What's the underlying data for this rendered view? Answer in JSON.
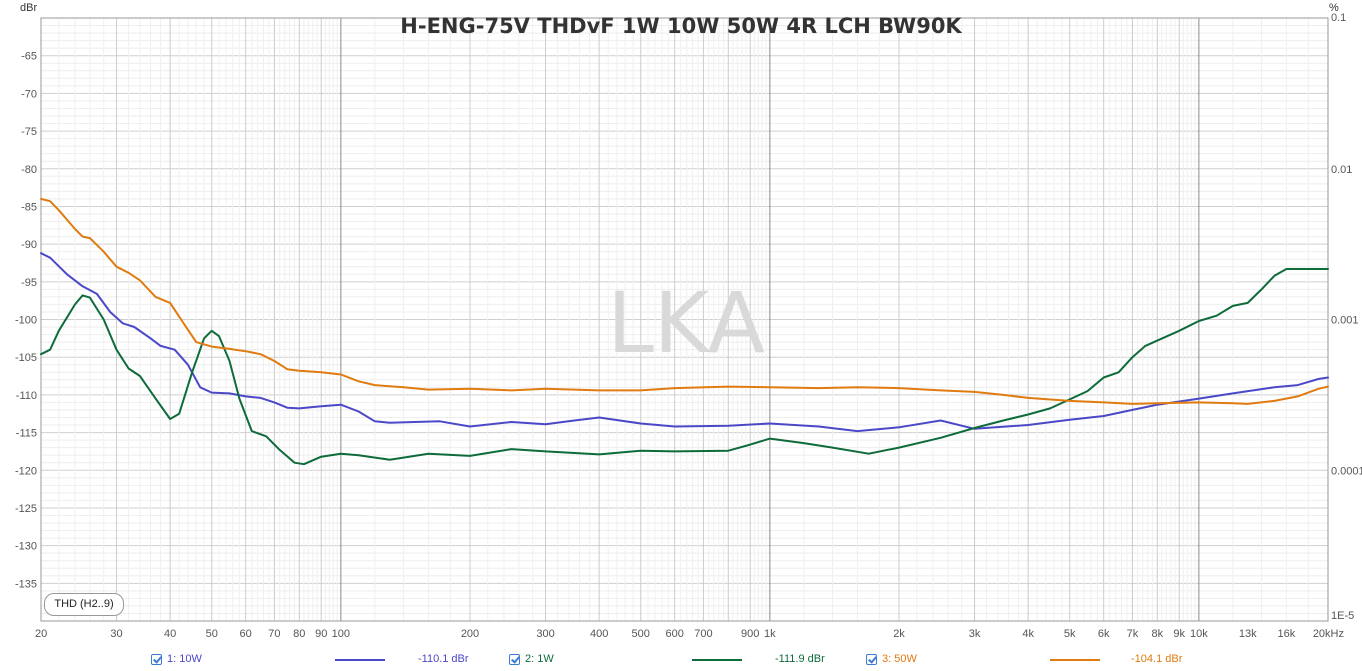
{
  "title": "H-ENG-75V THDvF 1W 10W 50W 4R LCH BW90K",
  "watermark": "LKA",
  "left_unit": "dBr",
  "right_unit": "%",
  "measure_badge": "THD (H2..9)",
  "colors": {
    "series_10w": "#4b48c8",
    "series_1w": "#0e6b3a",
    "series_50w": "#e07b10",
    "grid": "#e2e2e2",
    "grid_major": "#8a8a8a"
  },
  "legend": [
    {
      "check_label": "1: 10W",
      "value": "-110.1 dBr",
      "color": "#4b48c8"
    },
    {
      "check_label": "2: 1W",
      "value": "-111.9 dBr",
      "color": "#0e6b3a"
    },
    {
      "check_label": "3: 50W",
      "value": "-104.1 dBr",
      "color": "#e07b10"
    }
  ],
  "chart_data": {
    "type": "line",
    "title": "H-ENG-75V THDvF 1W 10W 50W 4R LCH BW90K",
    "x_scale": "log",
    "xlim": [
      20,
      20000
    ],
    "ylim": [
      -140,
      -60
    ],
    "ylabel": "dBr",
    "y2label": "%",
    "y2_scale": "log",
    "y2_ticks": [
      "0.1",
      "0.01",
      "0.001",
      "0.0001",
      "1E-5"
    ],
    "y_ticks": [
      "-65",
      "-70",
      "-75",
      "-80",
      "-85",
      "-90",
      "-95",
      "-100",
      "-105",
      "-110",
      "-115",
      "-120",
      "-125",
      "-130",
      "-135"
    ],
    "x_tick_labels": [
      {
        "f": 20,
        "label": "20"
      },
      {
        "f": 30,
        "label": "30"
      },
      {
        "f": 40,
        "label": "40"
      },
      {
        "f": 50,
        "label": "50"
      },
      {
        "f": 60,
        "label": "60"
      },
      {
        "f": 70,
        "label": "70"
      },
      {
        "f": 80,
        "label": "80"
      },
      {
        "f": 90,
        "label": "90"
      },
      {
        "f": 100,
        "label": "100"
      },
      {
        "f": 200,
        "label": "200"
      },
      {
        "f": 300,
        "label": "300"
      },
      {
        "f": 400,
        "label": "400"
      },
      {
        "f": 500,
        "label": "500"
      },
      {
        "f": 600,
        "label": "600"
      },
      {
        "f": 700,
        "label": "700"
      },
      {
        "f": 900,
        "label": "900"
      },
      {
        "f": 1000,
        "label": "1k"
      },
      {
        "f": 2000,
        "label": "2k"
      },
      {
        "f": 3000,
        "label": "3k"
      },
      {
        "f": 4000,
        "label": "4k"
      },
      {
        "f": 5000,
        "label": "5k"
      },
      {
        "f": 6000,
        "label": "6k"
      },
      {
        "f": 7000,
        "label": "7k"
      },
      {
        "f": 8000,
        "label": "8k"
      },
      {
        "f": 9000,
        "label": "9k"
      },
      {
        "f": 10000,
        "label": "10k"
      },
      {
        "f": 13000,
        "label": "13k"
      },
      {
        "f": 16000,
        "label": "16k"
      },
      {
        "f": 20000,
        "label": "20kHz"
      }
    ],
    "series": [
      {
        "name": "1: 10W",
        "color": "#4b48c8",
        "points": [
          [
            20,
            -91.2
          ],
          [
            21,
            -91.8
          ],
          [
            23,
            -94
          ],
          [
            25,
            -95.6
          ],
          [
            27,
            -96.6
          ],
          [
            29,
            -99
          ],
          [
            31,
            -100.5
          ],
          [
            33,
            -101
          ],
          [
            36,
            -102.5
          ],
          [
            38,
            -103.5
          ],
          [
            41,
            -104
          ],
          [
            44,
            -106
          ],
          [
            47,
            -109
          ],
          [
            50,
            -109.7
          ],
          [
            55,
            -109.8
          ],
          [
            60,
            -110.2
          ],
          [
            65,
            -110.4
          ],
          [
            70,
            -111
          ],
          [
            75,
            -111.7
          ],
          [
            80,
            -111.8
          ],
          [
            90,
            -111.5
          ],
          [
            100,
            -111.3
          ],
          [
            110,
            -112.2
          ],
          [
            120,
            -113.5
          ],
          [
            130,
            -113.7
          ],
          [
            170,
            -113.5
          ],
          [
            200,
            -114.2
          ],
          [
            250,
            -113.6
          ],
          [
            300,
            -113.9
          ],
          [
            350,
            -113.4
          ],
          [
            400,
            -113
          ],
          [
            500,
            -113.8
          ],
          [
            600,
            -114.2
          ],
          [
            800,
            -114.1
          ],
          [
            1000,
            -113.8
          ],
          [
            1300,
            -114.2
          ],
          [
            1600,
            -114.8
          ],
          [
            2000,
            -114.3
          ],
          [
            2500,
            -113.4
          ],
          [
            3000,
            -114.5
          ],
          [
            4000,
            -114
          ],
          [
            5000,
            -113.3
          ],
          [
            6000,
            -112.8
          ],
          [
            7000,
            -112
          ],
          [
            8000,
            -111.3
          ],
          [
            10000,
            -110.5
          ],
          [
            12000,
            -109.8
          ],
          [
            15000,
            -109
          ],
          [
            17000,
            -108.7
          ],
          [
            19000,
            -107.9
          ],
          [
            20000,
            -107.7
          ]
        ]
      },
      {
        "name": "2: 1W",
        "color": "#0e6b3a",
        "points": [
          [
            20,
            -104.6
          ],
          [
            21,
            -104
          ],
          [
            22,
            -101.5
          ],
          [
            24,
            -98
          ],
          [
            25,
            -96.8
          ],
          [
            26,
            -97.1
          ],
          [
            28,
            -100
          ],
          [
            30,
            -104
          ],
          [
            32,
            -106.5
          ],
          [
            34,
            -107.5
          ],
          [
            37,
            -110.5
          ],
          [
            40,
            -113.2
          ],
          [
            42,
            -112.5
          ],
          [
            45,
            -107
          ],
          [
            48,
            -102.5
          ],
          [
            50,
            -101.5
          ],
          [
            52,
            -102.2
          ],
          [
            55,
            -105.5
          ],
          [
            58,
            -110.5
          ],
          [
            62,
            -114.8
          ],
          [
            67,
            -115.5
          ],
          [
            72,
            -117.3
          ],
          [
            78,
            -119
          ],
          [
            82,
            -119.2
          ],
          [
            90,
            -118.2
          ],
          [
            100,
            -117.8
          ],
          [
            110,
            -118
          ],
          [
            130,
            -118.6
          ],
          [
            160,
            -117.8
          ],
          [
            200,
            -118.1
          ],
          [
            250,
            -117.2
          ],
          [
            300,
            -117.5
          ],
          [
            400,
            -117.9
          ],
          [
            500,
            -117.4
          ],
          [
            600,
            -117.5
          ],
          [
            800,
            -117.4
          ],
          [
            900,
            -116.6
          ],
          [
            1000,
            -115.8
          ],
          [
            1200,
            -116.4
          ],
          [
            1400,
            -117
          ],
          [
            1700,
            -117.8
          ],
          [
            2000,
            -117
          ],
          [
            2500,
            -115.7
          ],
          [
            3000,
            -114.4
          ],
          [
            3500,
            -113.4
          ],
          [
            4000,
            -112.6
          ],
          [
            4500,
            -111.8
          ],
          [
            5000,
            -110.6
          ],
          [
            5500,
            -109.5
          ],
          [
            6000,
            -107.7
          ],
          [
            6500,
            -107
          ],
          [
            7000,
            -105
          ],
          [
            7500,
            -103.5
          ],
          [
            8000,
            -102.8
          ],
          [
            9000,
            -101.5
          ],
          [
            10000,
            -100.2
          ],
          [
            11000,
            -99.5
          ],
          [
            12000,
            -98.2
          ],
          [
            13000,
            -97.8
          ],
          [
            14000,
            -96
          ],
          [
            15000,
            -94.2
          ],
          [
            16000,
            -93.3
          ],
          [
            17000,
            -93.3
          ],
          [
            20000,
            -93.3
          ]
        ]
      },
      {
        "name": "3: 50W",
        "color": "#e07b10",
        "points": [
          [
            20,
            -84
          ],
          [
            21,
            -84.3
          ],
          [
            22,
            -85.5
          ],
          [
            24,
            -88
          ],
          [
            25,
            -89
          ],
          [
            26,
            -89.2
          ],
          [
            28,
            -91
          ],
          [
            30,
            -93
          ],
          [
            32,
            -93.8
          ],
          [
            34,
            -94.8
          ],
          [
            37,
            -97
          ],
          [
            40,
            -97.8
          ],
          [
            43,
            -100.5
          ],
          [
            46,
            -103
          ],
          [
            50,
            -103.6
          ],
          [
            55,
            -103.9
          ],
          [
            60,
            -104.2
          ],
          [
            65,
            -104.6
          ],
          [
            70,
            -105.5
          ],
          [
            75,
            -106.6
          ],
          [
            80,
            -106.8
          ],
          [
            90,
            -107
          ],
          [
            100,
            -107.3
          ],
          [
            110,
            -108.2
          ],
          [
            120,
            -108.7
          ],
          [
            140,
            -109
          ],
          [
            160,
            -109.3
          ],
          [
            200,
            -109.2
          ],
          [
            250,
            -109.4
          ],
          [
            300,
            -109.2
          ],
          [
            400,
            -109.4
          ],
          [
            500,
            -109.4
          ],
          [
            600,
            -109.1
          ],
          [
            800,
            -108.9
          ],
          [
            1000,
            -109
          ],
          [
            1300,
            -109.1
          ],
          [
            1600,
            -109
          ],
          [
            2000,
            -109.1
          ],
          [
            2500,
            -109.4
          ],
          [
            3000,
            -109.6
          ],
          [
            3500,
            -110
          ],
          [
            4000,
            -110.4
          ],
          [
            5000,
            -110.8
          ],
          [
            6000,
            -111
          ],
          [
            7000,
            -111.2
          ],
          [
            8000,
            -111.1
          ],
          [
            10000,
            -111
          ],
          [
            12000,
            -111.1
          ],
          [
            13000,
            -111.2
          ],
          [
            15000,
            -110.8
          ],
          [
            17000,
            -110.2
          ],
          [
            19000,
            -109.2
          ],
          [
            20000,
            -108.9
          ]
        ]
      }
    ]
  }
}
